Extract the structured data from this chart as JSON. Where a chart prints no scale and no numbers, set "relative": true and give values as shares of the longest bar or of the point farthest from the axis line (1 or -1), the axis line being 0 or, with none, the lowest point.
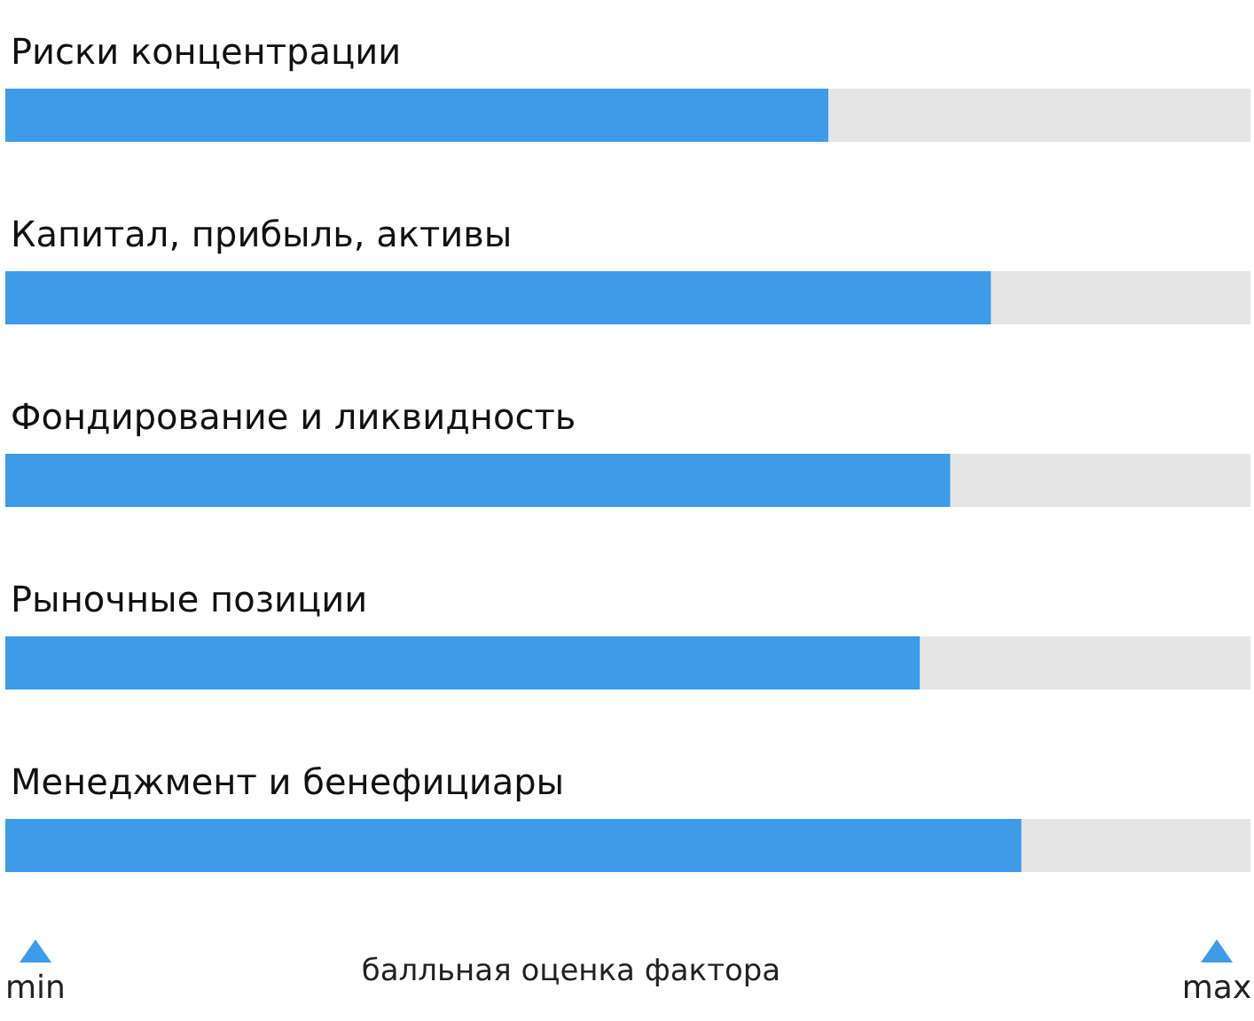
{
  "chart_data": {
    "type": "bar",
    "orientation": "horizontal",
    "relative": true,
    "xlabel": "балльная оценка фактора",
    "categories": [
      "Риски концентрации",
      "Капитал, прибыль, активы",
      "Фондирование и ликвидность",
      "Рыночные позиции",
      "Менеджмент и бенефициары"
    ],
    "values": [
      0.81,
      0.97,
      0.93,
      0.9,
      1
    ],
    "color": "#3d9be9",
    "annotations": [
      "min",
      "max"
    ]
  }
}
